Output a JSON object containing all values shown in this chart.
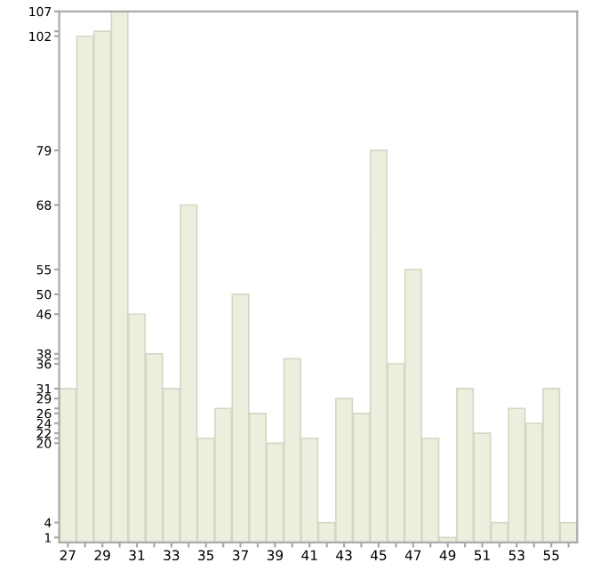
{
  "chart_data": {
    "type": "bar",
    "categories": [
      "27",
      null,
      "29",
      null,
      "31",
      null,
      "33",
      null,
      "35",
      null,
      "37",
      null,
      "39",
      null,
      "41",
      null,
      "43",
      null,
      "45",
      null,
      "47",
      null,
      "49",
      null,
      "51",
      null,
      "53",
      null,
      "55",
      null
    ],
    "values": [
      31,
      102,
      103,
      107,
      46,
      38,
      31,
      68,
      21,
      27,
      50,
      26,
      20,
      37,
      21,
      4,
      29,
      26,
      79,
      36,
      55,
      21,
      1,
      31,
      22,
      4,
      27,
      24,
      31,
      4
    ],
    "color": "#eeeedf",
    "ylim": [
      0,
      107
    ],
    "yticks": [
      1,
      4,
      20,
      {
        "value": 21,
        "label": null
      },
      22,
      24,
      26,
      {
        "value": 27,
        "label": null
      },
      29,
      31,
      36,
      {
        "value": 37,
        "label": null
      },
      38,
      46,
      50,
      55,
      68,
      79,
      102,
      {
        "value": 103,
        "label": null
      },
      107
    ],
    "grid": false
  }
}
